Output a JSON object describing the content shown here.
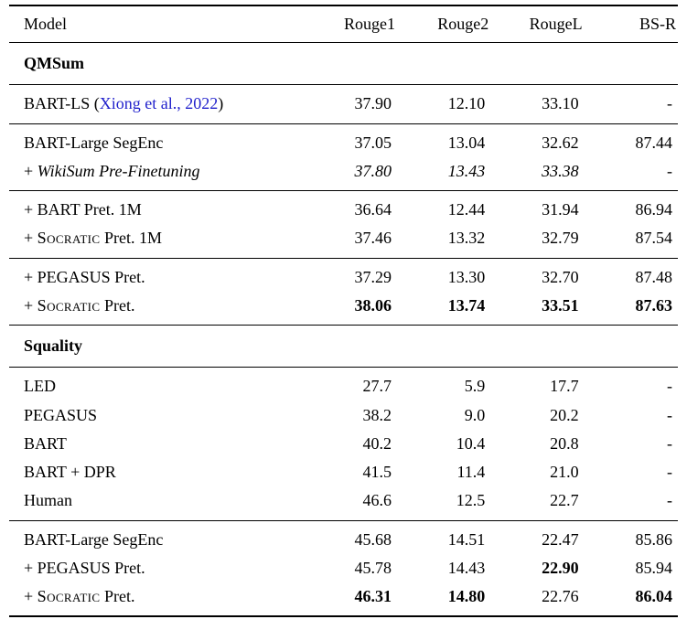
{
  "colors": {
    "citation_blue": "#2222cc",
    "text": "#000000",
    "background": "#ffffff"
  },
  "table": {
    "columns": [
      "Model",
      "Rouge1",
      "Rouge2",
      "RougeL",
      "BS-R"
    ],
    "sections": [
      {
        "title": "QMSum",
        "groups": [
          {
            "rows": [
              {
                "label": [
                  {
                    "t": "BART-LS ("
                  },
                  {
                    "t": "Xiong et al., 2022",
                    "cite": true
                  },
                  {
                    "t": ")"
                  }
                ],
                "values": [
                  {
                    "t": "37.90"
                  },
                  {
                    "t": "12.10"
                  },
                  {
                    "t": "33.10"
                  },
                  {
                    "t": "-"
                  }
                ]
              }
            ]
          },
          {
            "rows": [
              {
                "label": [
                  {
                    "t": "BART-Large SegEnc"
                  }
                ],
                "values": [
                  {
                    "t": "37.05"
                  },
                  {
                    "t": "13.04"
                  },
                  {
                    "t": "32.62"
                  },
                  {
                    "t": "87.44"
                  }
                ]
              },
              {
                "label": [
                  {
                    "t": "+ "
                  },
                  {
                    "t": "WikiSum Pre-Finetuning",
                    "i": true
                  }
                ],
                "values": [
                  {
                    "t": "37.80",
                    "i": true
                  },
                  {
                    "t": "13.43",
                    "i": true
                  },
                  {
                    "t": "33.38",
                    "i": true
                  },
                  {
                    "t": "-"
                  }
                ]
              }
            ]
          },
          {
            "rows": [
              {
                "label": [
                  {
                    "t": "+ BART Pret. 1M"
                  }
                ],
                "values": [
                  {
                    "t": "36.64"
                  },
                  {
                    "t": "12.44"
                  },
                  {
                    "t": "31.94"
                  },
                  {
                    "t": "86.94"
                  }
                ]
              },
              {
                "label": [
                  {
                    "t": "+ "
                  },
                  {
                    "t": "Socratic",
                    "sc": true
                  },
                  {
                    "t": " Pret. 1M"
                  }
                ],
                "values": [
                  {
                    "t": "37.46"
                  },
                  {
                    "t": "13.32"
                  },
                  {
                    "t": "32.79"
                  },
                  {
                    "t": "87.54"
                  }
                ]
              }
            ]
          },
          {
            "rows": [
              {
                "label": [
                  {
                    "t": "+ PEGASUS Pret."
                  }
                ],
                "values": [
                  {
                    "t": "37.29"
                  },
                  {
                    "t": "13.30"
                  },
                  {
                    "t": "32.70"
                  },
                  {
                    "t": "87.48"
                  }
                ]
              },
              {
                "label": [
                  {
                    "t": "+ "
                  },
                  {
                    "t": "Socratic",
                    "sc": true
                  },
                  {
                    "t": " Pret."
                  }
                ],
                "values": [
                  {
                    "t": "38.06",
                    "b": true
                  },
                  {
                    "t": "13.74",
                    "b": true
                  },
                  {
                    "t": "33.51",
                    "b": true
                  },
                  {
                    "t": "87.63",
                    "b": true
                  }
                ]
              }
            ]
          }
        ]
      },
      {
        "title": "Squality",
        "groups": [
          {
            "rows": [
              {
                "label": [
                  {
                    "t": "LED"
                  }
                ],
                "values": [
                  {
                    "t": "27.7"
                  },
                  {
                    "t": "5.9"
                  },
                  {
                    "t": "17.7"
                  },
                  {
                    "t": "-"
                  }
                ]
              },
              {
                "label": [
                  {
                    "t": "PEGASUS"
                  }
                ],
                "values": [
                  {
                    "t": "38.2"
                  },
                  {
                    "t": "9.0"
                  },
                  {
                    "t": "20.2"
                  },
                  {
                    "t": "-"
                  }
                ]
              },
              {
                "label": [
                  {
                    "t": "BART"
                  }
                ],
                "values": [
                  {
                    "t": "40.2"
                  },
                  {
                    "t": "10.4"
                  },
                  {
                    "t": "20.8"
                  },
                  {
                    "t": "-"
                  }
                ]
              },
              {
                "label": [
                  {
                    "t": "BART + DPR"
                  }
                ],
                "values": [
                  {
                    "t": "41.5"
                  },
                  {
                    "t": "11.4"
                  },
                  {
                    "t": "21.0"
                  },
                  {
                    "t": "-"
                  }
                ]
              },
              {
                "label": [
                  {
                    "t": "Human"
                  }
                ],
                "values": [
                  {
                    "t": "46.6"
                  },
                  {
                    "t": "12.5"
                  },
                  {
                    "t": "22.7"
                  },
                  {
                    "t": "-"
                  }
                ]
              }
            ]
          },
          {
            "rows": [
              {
                "label": [
                  {
                    "t": "BART-Large SegEnc"
                  }
                ],
                "values": [
                  {
                    "t": "45.68"
                  },
                  {
                    "t": "14.51"
                  },
                  {
                    "t": "22.47"
                  },
                  {
                    "t": "85.86"
                  }
                ]
              },
              {
                "label": [
                  {
                    "t": "+ PEGASUS Pret."
                  }
                ],
                "values": [
                  {
                    "t": "45.78"
                  },
                  {
                    "t": "14.43"
                  },
                  {
                    "t": "22.90",
                    "b": true
                  },
                  {
                    "t": "85.94"
                  }
                ]
              },
              {
                "label": [
                  {
                    "t": "+ "
                  },
                  {
                    "t": "Socratic",
                    "sc": true
                  },
                  {
                    "t": " Pret."
                  }
                ],
                "values": [
                  {
                    "t": "46.31",
                    "b": true
                  },
                  {
                    "t": "14.80",
                    "b": true
                  },
                  {
                    "t": "22.76"
                  },
                  {
                    "t": "86.04",
                    "b": true
                  }
                ]
              }
            ]
          }
        ]
      }
    ]
  }
}
